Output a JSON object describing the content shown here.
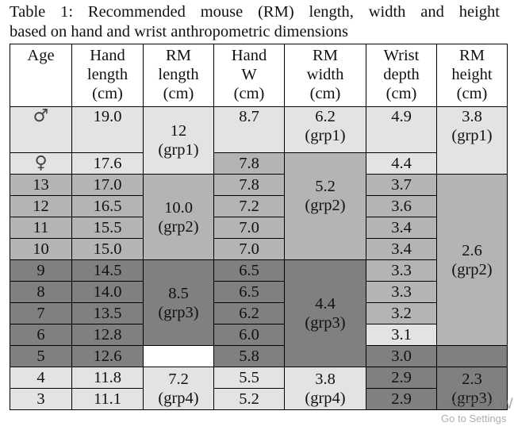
{
  "caption": {
    "line1": "Table 1: Recommended mouse (RM) length, width and height",
    "line2": "based on hand and wrist anthropometric dimensions"
  },
  "headers": [
    [
      "Age"
    ],
    [
      "Hand",
      "length",
      "(cm)"
    ],
    [
      "RM",
      "length",
      "(cm)"
    ],
    [
      "Hand",
      "W",
      "(cm)"
    ],
    [
      "RM",
      "width",
      "(cm)"
    ],
    [
      "Wrist",
      "depth",
      "(cm)"
    ],
    [
      "RM",
      "height",
      "(cm)"
    ]
  ],
  "rows": [
    {
      "age": "♂",
      "age_icon": "male-symbol-icon",
      "hand_length": "19.0",
      "hand_w": "8.7",
      "wrist_depth": "4.9"
    },
    {
      "age": "♀",
      "age_icon": "female-symbol-icon",
      "hand_length": "17.6",
      "hand_w": "7.8",
      "wrist_depth": "4.4"
    },
    {
      "age": "13",
      "hand_length": "17.0",
      "hand_w": "7.8",
      "wrist_depth": "3.7"
    },
    {
      "age": "12",
      "hand_length": "16.5",
      "hand_w": "7.2",
      "wrist_depth": "3.6"
    },
    {
      "age": "11",
      "hand_length": "15.5",
      "hand_w": "7.0",
      "wrist_depth": "3.4"
    },
    {
      "age": "10",
      "hand_length": "15.0",
      "hand_w": "7.0",
      "wrist_depth": "3.4"
    },
    {
      "age": "9",
      "hand_length": "14.5",
      "hand_w": "6.5",
      "wrist_depth": "3.3"
    },
    {
      "age": "8",
      "hand_length": "14.0",
      "hand_w": "6.5",
      "wrist_depth": "3.3"
    },
    {
      "age": "7",
      "hand_length": "13.5",
      "hand_w": "6.2",
      "wrist_depth": "3.2"
    },
    {
      "age": "6",
      "hand_length": "12.8",
      "hand_w": "6.0",
      "wrist_depth": "3.1"
    },
    {
      "age": "5",
      "hand_length": "12.6",
      "hand_w": "5.8",
      "wrist_depth": "3.0"
    },
    {
      "age": "4",
      "hand_length": "11.8",
      "hand_w": "5.5",
      "wrist_depth": "2.9"
    },
    {
      "age": "3",
      "hand_length": "11.1",
      "hand_w": "5.2",
      "wrist_depth": "2.9"
    }
  ],
  "rm_length": [
    {
      "value": "12",
      "group": "(grp1)"
    },
    {
      "value": "10.0",
      "group": "(grp2)"
    },
    {
      "value": "8.5",
      "group": "(grp3)"
    },
    {
      "value": "7.2",
      "group": "(grp4)"
    }
  ],
  "rm_width": [
    {
      "value": "6.2",
      "group": "(grp1)"
    },
    {
      "value": "5.2",
      "group": "(grp2)"
    },
    {
      "value": "4.4",
      "group": "(grp3)"
    },
    {
      "value": "3.8",
      "group": "(grp4)"
    }
  ],
  "rm_height": [
    {
      "value": "3.8",
      "group": "(grp1)"
    },
    {
      "value": "2.6",
      "group": "(grp2)"
    },
    {
      "value": "2.3",
      "group": "(grp3)"
    }
  ],
  "colors": {
    "light": "#e3e3e3",
    "medium": "#b4b4b4",
    "dark": "#808080",
    "white": "#ffffff"
  },
  "watermark": {
    "line1": "Activate W",
    "line2": "Go to Settings"
  }
}
